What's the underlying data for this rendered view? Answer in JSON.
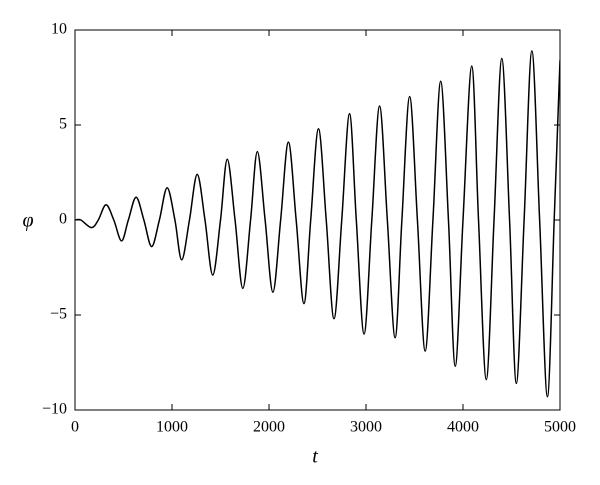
{
  "chart_data": {
    "type": "line",
    "x_label": "t",
    "y_label": "φ",
    "xlim": [
      0,
      5000
    ],
    "xticks": [
      0,
      1000,
      2000,
      3000,
      4000,
      5000
    ],
    "ylim": [
      -10,
      10
    ],
    "yticks": [
      {
        "value": -10,
        "label": "−10"
      },
      {
        "value": -5,
        "label": "−5"
      },
      0,
      5,
      10
    ],
    "grid": false,
    "series": [
      {
        "name": "φ",
        "color": "#000000",
        "x": [
          0,
          60,
          170,
          240,
          320,
          400,
          480,
          550,
          630,
          710,
          790,
          870,
          950,
          1030,
          1100,
          1180,
          1260,
          1340,
          1420,
          1500,
          1570,
          1650,
          1730,
          1810,
          1880,
          1960,
          2040,
          2120,
          2200,
          2280,
          2360,
          2430,
          2510,
          2590,
          2670,
          2750,
          2830,
          2900,
          2980,
          3060,
          3140,
          3220,
          3300,
          3370,
          3450,
          3530,
          3610,
          3690,
          3770,
          3850,
          3920,
          4000,
          4090,
          4160,
          4240,
          4320,
          4400,
          4480,
          4550,
          4630,
          4710,
          4790,
          4870,
          4940,
          5000
        ],
        "values": [
          0,
          0,
          -0.4,
          0,
          0.8,
          0,
          -1.1,
          0,
          1.2,
          0,
          -1.4,
          0,
          1.7,
          0,
          -2.1,
          0,
          2.4,
          0,
          -2.9,
          0,
          3.2,
          0,
          -3.6,
          0,
          3.6,
          0,
          -3.8,
          0,
          4.1,
          0,
          -4.4,
          0,
          4.8,
          0,
          -5.2,
          0,
          5.6,
          0,
          -6.0,
          0,
          6.0,
          0,
          -6.2,
          0,
          6.5,
          0,
          -6.9,
          0,
          7.3,
          0,
          -7.7,
          0,
          8.1,
          0,
          -8.4,
          0,
          8.5,
          0,
          -8.6,
          0,
          8.9,
          0,
          -9.3,
          0,
          8.4
        ]
      }
    ]
  }
}
